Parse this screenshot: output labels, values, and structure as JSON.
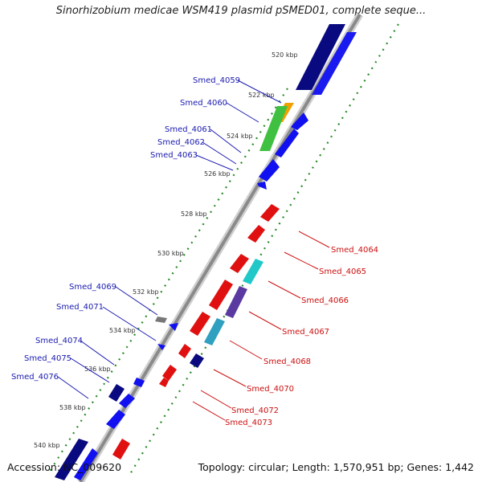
{
  "title": "Sinorhizobium medicae WSM419 plasmid pSMED01, complete seque...",
  "footer": {
    "accession": "Accession: NC_009620",
    "summary": "Topology: circular; Length: 1,570,951 bp; Genes: 1,442"
  },
  "colors": {
    "forward_gene": "#1010f0",
    "reverse_gene": "#e01010",
    "backbone": "#888888",
    "forward_label": "#1a1ab0",
    "reverse_label": "#cc1010",
    "tick_dots": "#2a8a2a"
  },
  "scale_ticks": [
    {
      "label": "520 kbp"
    },
    {
      "label": "522 kbp"
    },
    {
      "label": "524 kbp"
    },
    {
      "label": "526 kbp"
    },
    {
      "label": "528 kbp"
    },
    {
      "label": "530 kbp"
    },
    {
      "label": "532 kbp"
    },
    {
      "label": "534 kbp"
    },
    {
      "label": "536 kbp"
    },
    {
      "label": "538 kbp"
    },
    {
      "label": "540 kbp"
    }
  ],
  "gene_labels_forward": [
    {
      "label": "Smed_4059"
    },
    {
      "label": "Smed_4060"
    },
    {
      "label": "Smed_4061"
    },
    {
      "label": "Smed_4062"
    },
    {
      "label": "Smed_4063"
    },
    {
      "label": "Smed_4069"
    },
    {
      "label": "Smed_4071"
    },
    {
      "label": "Smed_4074"
    },
    {
      "label": "Smed_4075"
    },
    {
      "label": "Smed_4076"
    }
  ],
  "gene_labels_reverse": [
    {
      "label": "Smed_4064"
    },
    {
      "label": "Smed_4065"
    },
    {
      "label": "Smed_4066"
    },
    {
      "label": "Smed_4067"
    },
    {
      "label": "Smed_4068"
    },
    {
      "label": "Smed_4070"
    },
    {
      "label": "Smed_4072"
    },
    {
      "label": "Smed_4073"
    }
  ]
}
